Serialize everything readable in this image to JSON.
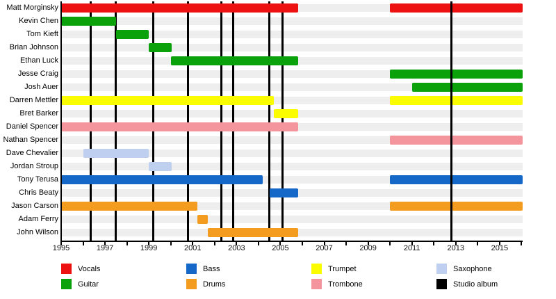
{
  "chart_data": {
    "type": "bar",
    "subtype": "member-timeline-gantt",
    "title": "",
    "x_axis": {
      "min": 1995,
      "max": 2016.05,
      "label_ticks": [
        1995,
        1997,
        1999,
        2001,
        2003,
        2005,
        2007,
        2009,
        2011,
        2013,
        2015
      ],
      "minor_tick_step": 1,
      "grid": false
    },
    "colors": {
      "red": "#ee1111",
      "green": "#0aa10a",
      "blue": "#1668c8",
      "orange": "#f49c20",
      "yellow": "#fcfc00",
      "pink": "#f4959d",
      "lightblue": "#bfcfef",
      "black": "#000000",
      "row_stripe": "#eeeeee"
    },
    "members": [
      {
        "name": "Matt Morginsky",
        "instrument": "Vocals",
        "color": "red",
        "periods": [
          [
            1995,
            2005.8
          ],
          [
            2010,
            2016.05
          ]
        ]
      },
      {
        "name": "Kevin Chen",
        "instrument": "Guitar",
        "color": "green",
        "periods": [
          [
            1995,
            1997.5
          ]
        ]
      },
      {
        "name": "Tom Kieft",
        "instrument": "Guitar",
        "color": "green",
        "periods": [
          [
            1997.5,
            1999
          ]
        ]
      },
      {
        "name": "Brian Johnson",
        "instrument": "Guitar",
        "color": "green",
        "periods": [
          [
            1999,
            2000.05
          ]
        ]
      },
      {
        "name": "Ethan Luck",
        "instrument": "Guitar",
        "color": "green",
        "periods": [
          [
            2000,
            2005.8
          ]
        ]
      },
      {
        "name": "Jesse Craig",
        "instrument": "Guitar",
        "color": "green",
        "periods": [
          [
            2010,
            2016.05
          ]
        ]
      },
      {
        "name": "Josh Auer",
        "instrument": "Guitar",
        "color": "green",
        "periods": [
          [
            2011,
            2016.05
          ]
        ]
      },
      {
        "name": "Darren Mettler",
        "instrument": "Trumpet",
        "color": "yellow",
        "periods": [
          [
            1995,
            2004.7
          ],
          [
            2010,
            2016.05
          ]
        ]
      },
      {
        "name": "Bret Barker",
        "instrument": "Trumpet",
        "color": "yellow",
        "periods": [
          [
            2004.7,
            2005.8
          ]
        ]
      },
      {
        "name": "Daniel Spencer",
        "instrument": "Trombone",
        "color": "pink",
        "periods": [
          [
            1995,
            2005.8
          ]
        ]
      },
      {
        "name": "Nathan Spencer",
        "instrument": "Trombone",
        "color": "pink",
        "periods": [
          [
            2010,
            2016.05
          ]
        ]
      },
      {
        "name": "Dave Chevalier",
        "instrument": "Saxophone",
        "color": "lightblue",
        "periods": [
          [
            1996,
            1999
          ]
        ]
      },
      {
        "name": "Jordan Stroup",
        "instrument": "Saxophone",
        "color": "lightblue",
        "periods": [
          [
            1999,
            2000.05
          ]
        ]
      },
      {
        "name": "Tony Terusa",
        "instrument": "Bass",
        "color": "blue",
        "periods": [
          [
            1995,
            2004.2
          ],
          [
            2010,
            2016.05
          ]
        ]
      },
      {
        "name": "Chris Beaty",
        "instrument": "Bass",
        "color": "blue",
        "periods": [
          [
            2004.5,
            2005.8
          ]
        ]
      },
      {
        "name": "Jason Carson",
        "instrument": "Drums",
        "color": "orange",
        "periods": [
          [
            1995,
            2001.2
          ],
          [
            2010,
            2016.05
          ]
        ]
      },
      {
        "name": "Adam Ferry",
        "instrument": "Drums",
        "color": "orange",
        "periods": [
          [
            2001.2,
            2001.7
          ]
        ]
      },
      {
        "name": "John Wilson",
        "instrument": "Drums",
        "color": "orange",
        "periods": [
          [
            2001.7,
            2005.8
          ]
        ]
      }
    ],
    "studio_albums": [
      1996.35,
      1997.5,
      1999.2,
      2000.8,
      2002.3,
      2002.85,
      2004.5,
      2005.1,
      2012.8
    ],
    "legend": [
      {
        "label": "Vocals",
        "color": "red"
      },
      {
        "label": "Guitar",
        "color": "green"
      },
      {
        "label": "Bass",
        "color": "blue"
      },
      {
        "label": "Drums",
        "color": "orange"
      },
      {
        "label": "Trumpet",
        "color": "yellow"
      },
      {
        "label": "Trombone",
        "color": "pink"
      },
      {
        "label": "Saxophone",
        "color": "lightblue"
      },
      {
        "label": "Studio album",
        "color": "black"
      }
    ],
    "legend_position": "bottom"
  }
}
